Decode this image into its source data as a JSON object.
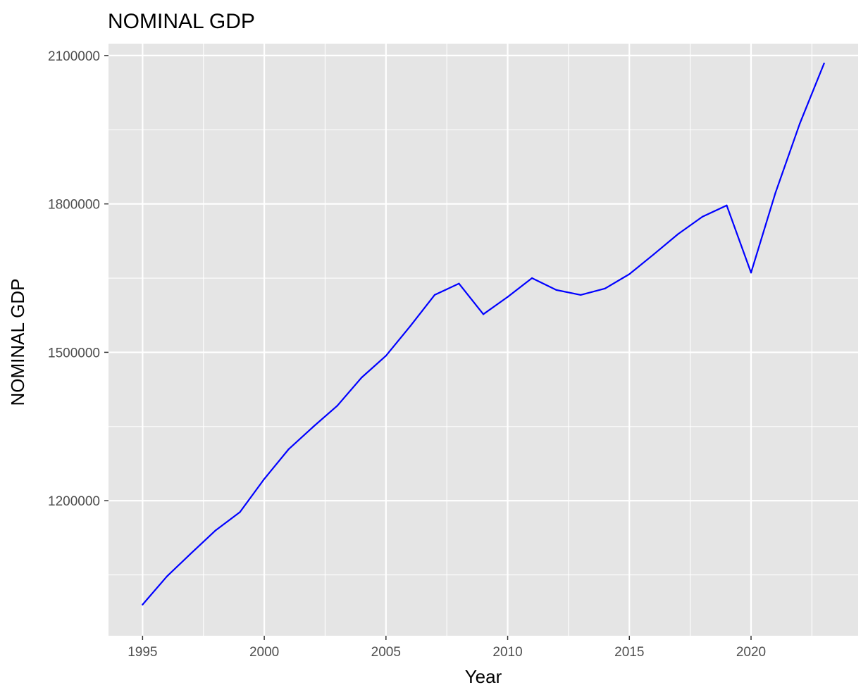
{
  "chart_data": {
    "type": "line",
    "title": "NOMINAL GDP",
    "xlabel": "Year",
    "ylabel": "NOMINAL GDP",
    "xlim": [
      1993.6,
      2024.4
    ],
    "ylim": [
      927000,
      2124000
    ],
    "x_ticks": [
      1995,
      2000,
      2005,
      2010,
      2015,
      2020
    ],
    "x_tick_labels": [
      "1995",
      "2000",
      "2005",
      "2010",
      "2015",
      "2020"
    ],
    "y_ticks": [
      1200000,
      1500000,
      1800000,
      2100000
    ],
    "y_tick_labels": [
      "1200000",
      "1500000",
      "1800000",
      "2100000"
    ],
    "grid": true,
    "legend": "none",
    "series": [
      {
        "color": "#0000ff",
        "x": [
          1995,
          1996,
          1997,
          1998,
          1999,
          2000,
          2001,
          2002,
          2003,
          2004,
          2005,
          2006,
          2007,
          2008,
          2009,
          2010,
          2011,
          2012,
          2013,
          2014,
          2015,
          2016,
          2017,
          2018,
          2019,
          2020,
          2021,
          2022,
          2023
        ],
        "values": [
          990000,
          1047000,
          1094000,
          1140000,
          1177000,
          1244000,
          1304000,
          1349000,
          1392000,
          1449000,
          1493000,
          1553000,
          1616000,
          1639000,
          1577000,
          1612000,
          1650000,
          1626000,
          1616000,
          1629000,
          1658000,
          1698000,
          1739000,
          1774000,
          1797000,
          1661000,
          1822000,
          1962000,
          2084000
        ]
      }
    ],
    "colors": {
      "panel_background": "#e5e5e5",
      "grid_line": "#ffffff",
      "series_line": "#0000ff",
      "tick_label": "#4d4d4d",
      "tick_mark": "#333333"
    }
  }
}
